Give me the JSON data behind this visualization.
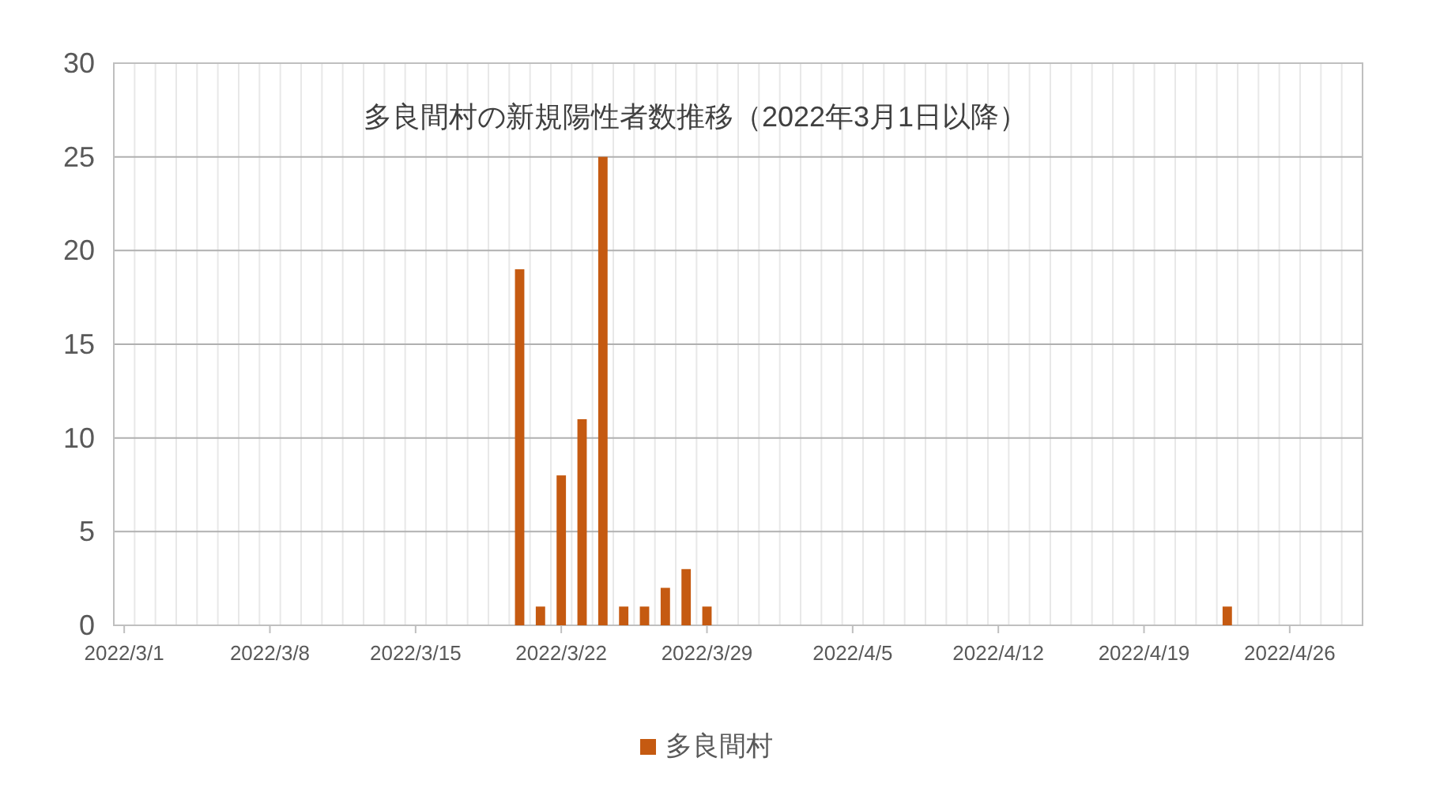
{
  "chart_data": {
    "type": "bar",
    "title": "多良間村の新規陽性者数推移（2022年3月1日以降）",
    "x": [
      "2022-03-20",
      "2022-03-21",
      "2022-03-22",
      "2022-03-23",
      "2022-03-24",
      "2022-03-25",
      "2022-03-26",
      "2022-03-27",
      "2022-03-28",
      "2022-03-29",
      "2022-04-23"
    ],
    "series": [
      {
        "name": "多良間村",
        "color": "#c55a11",
        "values": [
          19,
          1,
          8,
          11,
          25,
          1,
          1,
          2,
          3,
          1,
          1
        ]
      }
    ],
    "xlim": [
      "2022-02-28T12:00",
      "2022-04-29T12:00"
    ],
    "xticks": [
      {
        "value": "2022-03-01",
        "label": "2022/3/1"
      },
      {
        "value": "2022-03-08",
        "label": "2022/3/8"
      },
      {
        "value": "2022-03-15",
        "label": "2022/3/15"
      },
      {
        "value": "2022-03-22",
        "label": "2022/3/22"
      },
      {
        "value": "2022-03-29",
        "label": "2022/3/29"
      },
      {
        "value": "2022-04-05",
        "label": "2022/4/5"
      },
      {
        "value": "2022-04-12",
        "label": "2022/4/12"
      },
      {
        "value": "2022-04-19",
        "label": "2022/4/19"
      },
      {
        "value": "2022-04-26",
        "label": "2022/4/26"
      }
    ],
    "ylim": [
      0,
      30
    ],
    "yticks": [
      0,
      5,
      10,
      15,
      20,
      25,
      30
    ],
    "grid": true,
    "legend": "bottom"
  }
}
